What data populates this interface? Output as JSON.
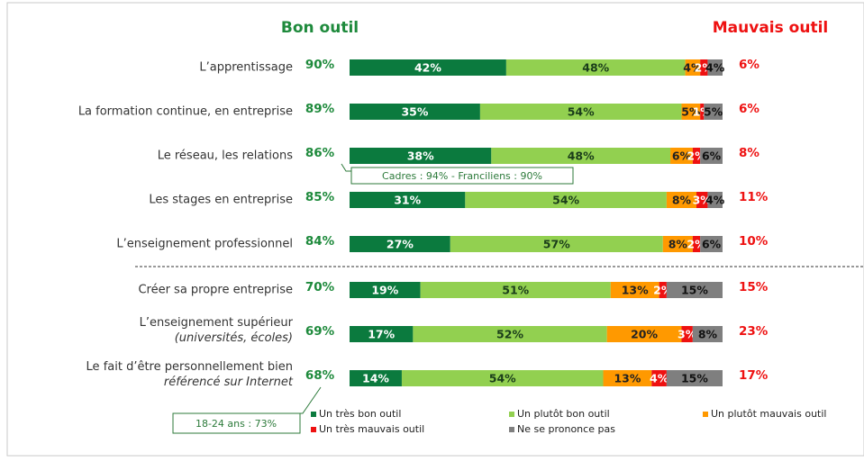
{
  "chart_data": {
    "type": "stacked-bar-horizontal",
    "categories": [
      [
        "L’apprentissage"
      ],
      [
        "La formation continue, en entreprise"
      ],
      [
        "Le réseau, les relations"
      ],
      [
        "Les stages en entreprise"
      ],
      [
        "L’enseignement professionnel"
      ],
      [
        "Créer sa propre entreprise"
      ],
      [
        "L’enseignement supérieur",
        "(universités, écoles)"
      ],
      [
        "Le fait d’être personnellement bien",
        "référencé sur Internet"
      ]
    ],
    "xlim": [
      0,
      100
    ],
    "series": [
      {
        "name": "Un très bon outil",
        "color": "#0b7a3e",
        "label_color": "#ffffff",
        "values": [
          42,
          35,
          38,
          31,
          27,
          19,
          17,
          14
        ],
        "value_labels": [
          "42%",
          "35%",
          "38%",
          "31%",
          "27%",
          "19%",
          "17%",
          "14%"
        ]
      },
      {
        "name": "Un plutôt bon outil",
        "color": "#92d050",
        "label_color": "#1a3d1a",
        "values": [
          48,
          54,
          48,
          54,
          57,
          51,
          52,
          54
        ],
        "value_labels": [
          "48%",
          "54%",
          "48%",
          "54%",
          "57%",
          "51%",
          "52%",
          "54%"
        ]
      },
      {
        "name": "Un plutôt mauvais outil",
        "color": "#ff9900",
        "label_color": "#222222",
        "values": [
          4,
          5,
          6,
          8,
          8,
          13,
          20,
          13
        ],
        "value_labels": [
          "4%",
          "5%",
          "6%",
          "8%",
          "8%",
          "13%",
          "20%",
          "13%"
        ]
      },
      {
        "name": "Un très mauvais outil",
        "color": "#ee1111",
        "label_color": "#ffffff",
        "values": [
          2,
          1,
          2,
          3,
          2,
          2,
          3,
          4
        ],
        "value_labels": [
          "2%",
          "1%",
          "2%",
          "3%",
          "2%",
          "2%",
          "3%",
          "4%"
        ]
      },
      {
        "name": "Ne se prononce pas",
        "color": "#7f7f7f",
        "label_color": "#111111",
        "values": [
          4,
          5,
          6,
          4,
          6,
          15,
          8,
          15
        ],
        "value_labels": [
          "4%",
          "5%",
          "6%",
          "4%",
          "6%",
          "15%",
          "8%",
          "15%"
        ]
      }
    ],
    "totals": [
      {
        "name": "Bon outil",
        "color": "#1e8a3c",
        "values": [
          90,
          89,
          86,
          85,
          84,
          70,
          69,
          68
        ],
        "value_labels": [
          "90%",
          "89%",
          "86%",
          "85%",
          "84%",
          "70%",
          "69%",
          "68%"
        ]
      },
      {
        "name": "Mauvais outil",
        "color": "#ee1111",
        "values": [
          6,
          6,
          8,
          11,
          10,
          15,
          23,
          17
        ],
        "value_labels": [
          "6%",
          "6%",
          "8%",
          "11%",
          "10%",
          "15%",
          "23%",
          "17%"
        ]
      }
    ],
    "annotations": [
      "Cadres : 94% - Franciliens : 90%",
      "18-24 ans : 73%"
    ]
  }
}
